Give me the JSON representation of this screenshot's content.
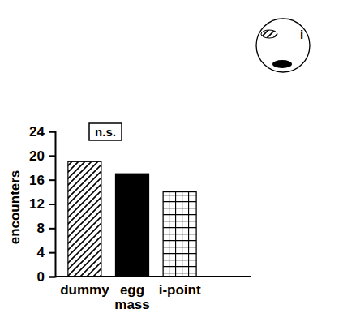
{
  "chart_data": {
    "type": "bar",
    "y_label": "encounters",
    "categories": [
      "dummy",
      "egg mass",
      "i-point"
    ],
    "values": [
      19,
      17,
      14
    ],
    "color": "#000000",
    "ylim": [
      0,
      24
    ],
    "yticks": [
      0,
      4,
      8,
      12,
      16,
      20,
      24
    ],
    "grid": false,
    "annotations": [
      "n.s.",
      "i"
    ]
  }
}
